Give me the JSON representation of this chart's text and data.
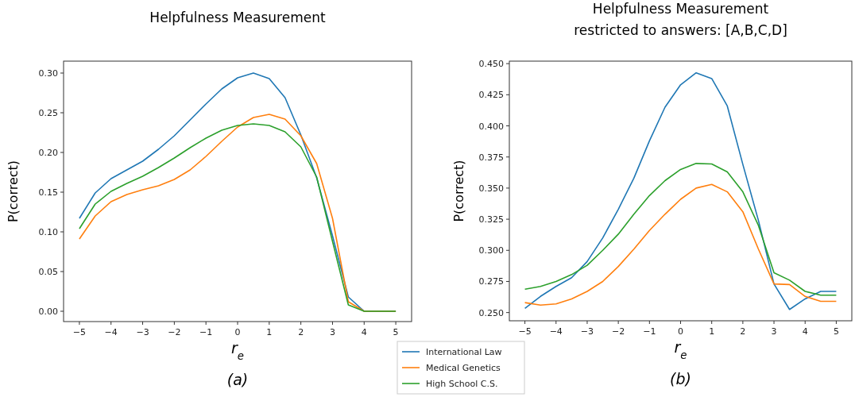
{
  "chart_data": [
    {
      "type": "line",
      "title": "Helpfulness Measurement",
      "xlabel": "r$_{e}$",
      "ylabel": "P(correct)",
      "annotations": [
        "(a)"
      ],
      "legend": "bottom",
      "grid": false,
      "x": [
        -5,
        -4.5,
        -4,
        -3.5,
        -3,
        -2.5,
        -2,
        -1.5,
        -1,
        -0.5,
        0,
        0.5,
        1,
        1.5,
        2,
        2.5,
        3,
        3.5,
        4,
        4.5,
        5
      ],
      "xlim": [
        -5.5,
        5.5
      ],
      "ylim": [
        -0.013,
        0.315
      ],
      "xticks": [
        {
          "value": -5,
          "label": "−5"
        },
        {
          "value": -4,
          "label": "−4"
        },
        {
          "value": -3,
          "label": "−3"
        },
        {
          "value": -2,
          "label": "−2"
        },
        {
          "value": -1,
          "label": "−1"
        },
        0,
        1,
        2,
        3,
        4,
        5
      ],
      "yticks": [
        {
          "value": 0,
          "label": "0.00"
        },
        {
          "value": 0.05,
          "label": "0.05"
        },
        {
          "value": 0.1,
          "label": "0.10"
        },
        {
          "value": 0.15,
          "label": "0.15"
        },
        {
          "value": 0.2,
          "label": "0.20"
        },
        {
          "value": 0.25,
          "label": "0.25"
        },
        {
          "value": 0.3,
          "label": "0.30"
        }
      ],
      "series": [
        {
          "name": "International Law",
          "color": "#1f77b4",
          "values": [
            0.117,
            0.149,
            0.167,
            0.178,
            0.189,
            0.204,
            0.221,
            0.241,
            0.261,
            0.28,
            0.294,
            0.3,
            0.293,
            0.269,
            0.222,
            0.168,
            0.095,
            0.018,
            0,
            0,
            0
          ]
        },
        {
          "name": "Medical Genetics",
          "color": "#ff7f0e",
          "values": [
            0.091,
            0.12,
            0.138,
            0.147,
            0.153,
            0.158,
            0.166,
            0.178,
            0.195,
            0.214,
            0.232,
            0.244,
            0.248,
            0.242,
            0.221,
            0.186,
            0.117,
            0.012,
            0,
            0,
            0
          ]
        },
        {
          "name": "High School C.S.",
          "color": "#2ca02c",
          "values": [
            0.104,
            0.135,
            0.151,
            0.161,
            0.17,
            0.181,
            0.193,
            0.206,
            0.218,
            0.228,
            0.234,
            0.236,
            0.234,
            0.226,
            0.207,
            0.169,
            0.088,
            0.008,
            0,
            0,
            0
          ]
        }
      ]
    },
    {
      "type": "line",
      "title": "Helpfulness Measurement",
      "subtitle": "restricted to answers: [A,B,C,D]",
      "xlabel": "r$_{e}$",
      "ylabel": "P(correct)",
      "annotations": [
        "(b)"
      ],
      "grid": false,
      "x": [
        -5,
        -4.5,
        -4,
        -3.5,
        -3,
        -2.5,
        -2,
        -1.5,
        -1,
        -0.5,
        0,
        0.5,
        1,
        1.5,
        2,
        2.5,
        3,
        3.5,
        4,
        4.5,
        5
      ],
      "xlim": [
        -5.5,
        5.5
      ],
      "ylim": [
        0.2434,
        0.452
      ],
      "xticks": [
        {
          "value": -5,
          "label": "−5"
        },
        {
          "value": -4,
          "label": "−4"
        },
        {
          "value": -3,
          "label": "−3"
        },
        {
          "value": -2,
          "label": "−2"
        },
        {
          "value": -1,
          "label": "−1"
        },
        0,
        1,
        2,
        3,
        4,
        5
      ],
      "yticks": [
        {
          "value": 0.25,
          "label": "0.250"
        },
        {
          "value": 0.275,
          "label": "0.275"
        },
        {
          "value": 0.3,
          "label": "0.300"
        },
        {
          "value": 0.325,
          "label": "0.325"
        },
        {
          "value": 0.35,
          "label": "0.350"
        },
        {
          "value": 0.375,
          "label": "0.375"
        },
        {
          "value": 0.4,
          "label": "0.400"
        },
        {
          "value": 0.425,
          "label": "0.425"
        },
        {
          "value": 0.45,
          "label": "0.450"
        }
      ],
      "series": [
        {
          "color": "#1f77b4",
          "values": [
            0.2534,
            0.263,
            0.271,
            0.278,
            0.291,
            0.31,
            0.333,
            0.358,
            0.388,
            0.415,
            0.433,
            0.4426,
            0.438,
            0.416,
            0.369,
            0.324,
            0.273,
            0.2525,
            0.261,
            0.267,
            0.267
          ]
        },
        {
          "color": "#ff7f0e",
          "values": [
            0.258,
            0.256,
            0.257,
            0.261,
            0.267,
            0.275,
            0.287,
            0.301,
            0.316,
            0.329,
            0.341,
            0.35,
            0.353,
            0.347,
            0.331,
            0.301,
            0.273,
            0.2725,
            0.263,
            0.259,
            0.259
          ]
        },
        {
          "color": "#2ca02c",
          "values": [
            0.2688,
            0.271,
            0.275,
            0.2805,
            0.288,
            0.3,
            0.313,
            0.329,
            0.344,
            0.356,
            0.365,
            0.3698,
            0.3694,
            0.363,
            0.347,
            0.32,
            0.282,
            0.276,
            0.267,
            0.264,
            0.264
          ]
        }
      ]
    }
  ]
}
